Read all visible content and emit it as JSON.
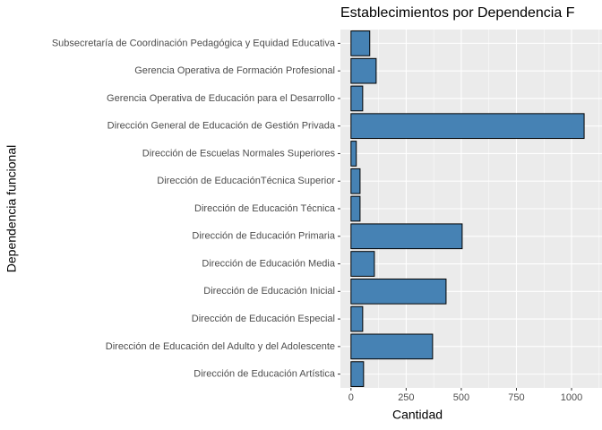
{
  "chart_data": {
    "type": "barh",
    "title": "Establecimientos por Dependencia F",
    "x_label": "Cantidad",
    "y_label": "Dependencia funcional",
    "categories": [
      "Subsecretaría de Coordinación Pedagógica y Equidad Educativa",
      "Gerencia Operativa de Formación Profesional",
      "Gerencia Operativa de Educación para el Desarrollo",
      "Dirección General de Educación de Gestión Privada",
      "Dirección de Escuelas Normales Superiores",
      "Dirección de EducaciónTécnica Superior",
      "Dirección de Educación Técnica",
      "Dirección de Educación Primaria",
      "Dirección de Educación Media",
      "Dirección de Educación Inicial",
      "Dirección de Educación Especial",
      "Dirección de Educación del Adulto y del Adolescente",
      "Dirección de Educación Artística"
    ],
    "values": [
      85,
      114,
      53,
      1057,
      24,
      41,
      41,
      504,
      106,
      431,
      53,
      370,
      57
    ],
    "color": "#4682b4",
    "xlim": [
      -48,
      1138
    ],
    "xticks": [
      0,
      250,
      500,
      750,
      1000
    ],
    "grid": true
  }
}
